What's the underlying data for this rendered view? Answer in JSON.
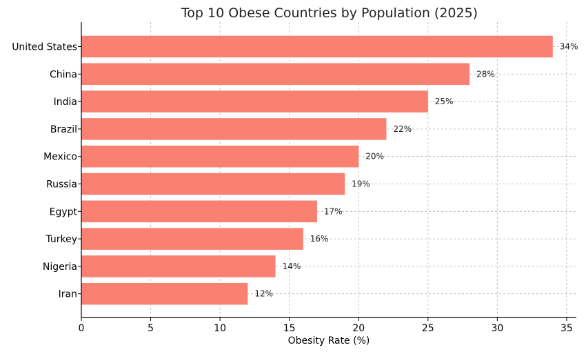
{
  "chart_data": {
    "type": "bar",
    "orientation": "horizontal",
    "title": "Top 10 Obese Countries by Population (2025)",
    "xlabel": "Obesity Rate (%)",
    "ylabel": "",
    "categories": [
      "United States",
      "China",
      "India",
      "Brazil",
      "Mexico",
      "Russia",
      "Egypt",
      "Turkey",
      "Nigeria",
      "Iran"
    ],
    "values": [
      34,
      28,
      25,
      22,
      20,
      19,
      17,
      16,
      14,
      12
    ],
    "data_labels": [
      "34%",
      "28%",
      "25%",
      "22%",
      "20%",
      "19%",
      "17%",
      "16%",
      "14%",
      "12%"
    ],
    "xlim": [
      0,
      35.7
    ],
    "xticks": [
      0,
      5,
      10,
      15,
      20,
      25,
      30,
      35
    ],
    "xtick_labels": [
      "0",
      "5",
      "10",
      "15",
      "20",
      "25",
      "30",
      "35"
    ],
    "grid": true,
    "bar_color": "#fa8072"
  }
}
